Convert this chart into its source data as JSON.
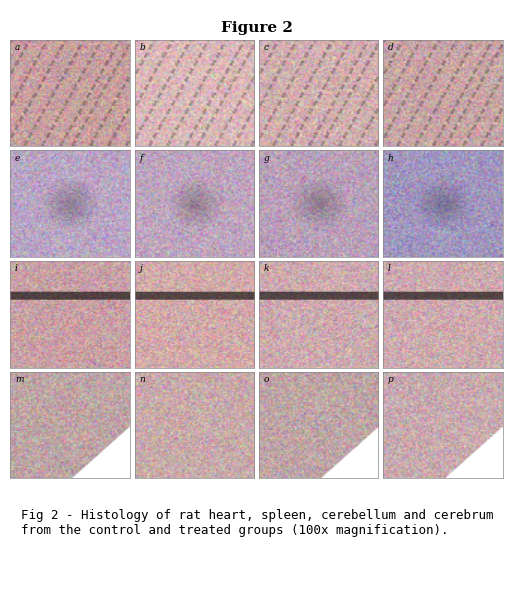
{
  "title": "Figure 2",
  "title_fontsize": 11,
  "title_fontweight": "bold",
  "caption": "Fig 2 - Histology of rat heart, spleen, cerebellum and cerebrum\nfrom the control and treated groups (100x magnification).",
  "caption_fontsize": 9,
  "nrows": 4,
  "ncols": 4,
  "labels": [
    "a",
    "b",
    "c",
    "d",
    "e",
    "f",
    "g",
    "h",
    "i",
    "j",
    "k",
    "l",
    "m",
    "n",
    "o",
    "p"
  ],
  "bg_color": "#ffffff",
  "panel_colors": [
    "#e8c8cc",
    "#f0dede",
    "#f5e0e0",
    "#f0d8d8",
    "#d8c8d8",
    "#dcc8d8",
    "#dcc8d8",
    "#c8c0dc",
    "#e0c8cc",
    "#f0c8cc",
    "#f0d8dc",
    "#ecd4d8",
    "#dcc8cc",
    "#e8ccd0",
    "#e0ccd0",
    "#ecd4d4"
  ],
  "figsize": [
    5.13,
    6.13
  ],
  "dpi": 100
}
